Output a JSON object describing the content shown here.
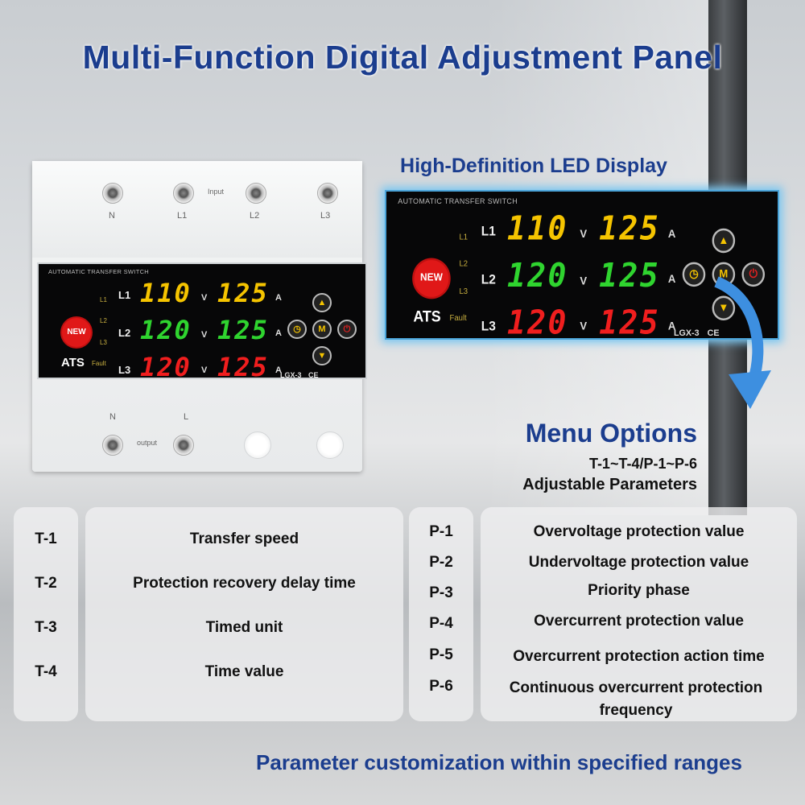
{
  "title": "Multi-Function Digital Adjustment Panel",
  "led_caption": "High-Definition LED Display",
  "device": {
    "top_labels": [
      "N",
      "L1",
      "L2",
      "L3"
    ],
    "input_label": "Input",
    "bottom_labels": [
      "N",
      "L"
    ],
    "output_label": "output"
  },
  "display": {
    "header": "AUTOMATIC TRANSFER SWITCH",
    "badge": "NEW",
    "brand": "ATS",
    "model": "LGX-3",
    "ce": "CE",
    "indicators": [
      "L1",
      "L2",
      "L3",
      "Fault"
    ],
    "rows": [
      {
        "line": "L1",
        "volts": "110",
        "amps": "125",
        "color": "#f5c400"
      },
      {
        "line": "L2",
        "volts": "120",
        "amps": "125",
        "color": "#2fd42f"
      },
      {
        "line": "L3",
        "volts": "120",
        "amps": "125",
        "color": "#f01e1e"
      }
    ],
    "volt_unit": "V",
    "amp_unit": "A",
    "buttons": {
      "up": "▲",
      "down": "▼",
      "menu": "M",
      "clock": "◷",
      "power": "⏻"
    }
  },
  "menu": {
    "title": "Menu Options",
    "range": "T-1~T-4/P-1~P-6",
    "subtitle": "Adjustable Parameters"
  },
  "t_params": [
    {
      "code": "T-1",
      "desc": "Transfer speed"
    },
    {
      "code": "T-2",
      "desc": "Protection recovery delay time"
    },
    {
      "code": "T-3",
      "desc": "Timed unit"
    },
    {
      "code": "T-4",
      "desc": "Time value"
    }
  ],
  "p_params": [
    {
      "code": "P-1",
      "desc": "Overvoltage protection value"
    },
    {
      "code": "P-2",
      "desc": "Undervoltage protection value"
    },
    {
      "code": "P-3",
      "desc": "Priority phase"
    },
    {
      "code": "P-4",
      "desc": "Overcurrent protection value"
    },
    {
      "code": "P-5",
      "desc": "Overcurrent protection action time"
    },
    {
      "code": "P-6",
      "desc": "Continuous overcurrent protection frequency"
    }
  ],
  "footer": "Parameter customization within specified ranges",
  "colors": {
    "heading": "#1b3d8e",
    "glow": "#7cc7f0"
  }
}
